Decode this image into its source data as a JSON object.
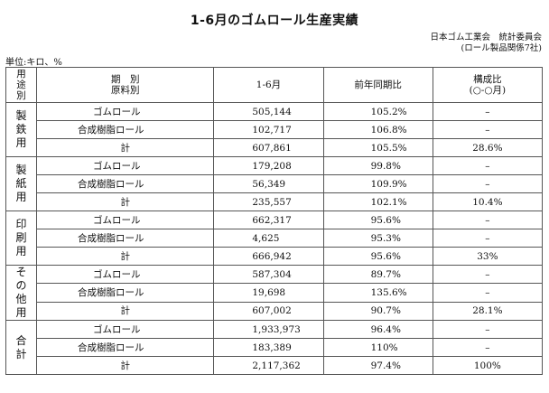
{
  "title": "1-6月のゴムロール生産実績",
  "source": {
    "line1": "日本ゴム工業会　統計委員会",
    "line2": "(ロール製品関係7社)"
  },
  "unit": "単位:キロ、%",
  "header": {
    "use_chars": [
      "用",
      "途",
      "別"
    ],
    "period_line1": "期　別",
    "period_line2": "原料別",
    "col_period": "1-6月",
    "col_yoy": "前年同期比",
    "col_comp_line1": "構成比",
    "col_comp_line2": "(○-○月)"
  },
  "groups": [
    {
      "use_chars": [
        "製",
        "鉄",
        "用"
      ],
      "rows": [
        {
          "name": "ゴムロール",
          "value": "505,144",
          "yoy": "105.2%",
          "comp": "–"
        },
        {
          "name": "合成樹脂ロール",
          "value": "102,717",
          "yoy": "106.8%",
          "comp": "–"
        },
        {
          "name": "計",
          "value": "607,861",
          "yoy": "105.5%",
          "comp": "28.6%"
        }
      ]
    },
    {
      "use_chars": [
        "製",
        "紙",
        "用"
      ],
      "rows": [
        {
          "name": "ゴムロール",
          "value": "179,208",
          "yoy": "99.8%",
          "comp": "–"
        },
        {
          "name": "合成樹脂ロール",
          "value": "56,349",
          "yoy": "109.9%",
          "comp": "–"
        },
        {
          "name": "計",
          "value": "235,557",
          "yoy": "102.1%",
          "comp": "10.4%"
        }
      ]
    },
    {
      "use_chars": [
        "印",
        "刷",
        "用"
      ],
      "rows": [
        {
          "name": "ゴムロール",
          "value": "662,317",
          "yoy": "95.6%",
          "comp": "–"
        },
        {
          "name": "合成樹脂ロール",
          "value": "4,625",
          "yoy": "95.3%",
          "comp": "–"
        },
        {
          "name": "計",
          "value": "666,942",
          "yoy": "95.6%",
          "comp": "33%"
        }
      ]
    },
    {
      "use_chars": [
        "そ",
        "の",
        "他",
        "用"
      ],
      "rows": [
        {
          "name": "ゴムロール",
          "value": "587,304",
          "yoy": "89.7%",
          "comp": "–"
        },
        {
          "name": "合成樹脂ロール",
          "value": "19,698",
          "yoy": "135.6%",
          "comp": "–"
        },
        {
          "name": "計",
          "value": "607,002",
          "yoy": "90.7%",
          "comp": "28.1%"
        }
      ]
    },
    {
      "use_chars": [
        "合",
        "計"
      ],
      "rows": [
        {
          "name": "ゴムロール",
          "value": "1,933,973",
          "yoy": "96.4%",
          "comp": "–"
        },
        {
          "name": "合成樹脂ロール",
          "value": "183,389",
          "yoy": "110%",
          "comp": "–"
        },
        {
          "name": "計",
          "value": "2,117,362",
          "yoy": "97.4%",
          "comp": "100%"
        }
      ]
    }
  ]
}
